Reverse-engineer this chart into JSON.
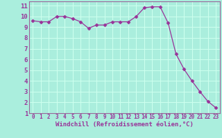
{
  "x": [
    0,
    1,
    2,
    3,
    4,
    5,
    6,
    7,
    8,
    9,
    10,
    11,
    12,
    13,
    14,
    15,
    16,
    17,
    18,
    19,
    20,
    21,
    22,
    23
  ],
  "y": [
    9.6,
    9.5,
    9.5,
    10.0,
    10.0,
    9.8,
    9.5,
    8.9,
    9.2,
    9.2,
    9.5,
    9.5,
    9.5,
    10.0,
    10.8,
    10.9,
    10.9,
    9.4,
    6.5,
    5.1,
    4.0,
    3.0,
    2.1,
    1.5
  ],
  "line_color": "#993399",
  "marker": "D",
  "marker_size": 2.5,
  "bg_color": "#aaeedd",
  "grid_color": "#ccffee",
  "xlabel": "Windchill (Refroidissement éolien,°C)",
  "xlim": [
    -0.5,
    23.5
  ],
  "ylim": [
    1,
    11.4
  ],
  "xticks": [
    0,
    1,
    2,
    3,
    4,
    5,
    6,
    7,
    8,
    9,
    10,
    11,
    12,
    13,
    14,
    15,
    16,
    17,
    18,
    19,
    20,
    21,
    22,
    23
  ],
  "yticks": [
    1,
    2,
    3,
    4,
    5,
    6,
    7,
    8,
    9,
    10,
    11
  ],
  "tick_color": "#993399",
  "label_color": "#993399",
  "spine_color": "#996699",
  "font_family": "monospace",
  "xtick_fontsize": 5.5,
  "ytick_fontsize": 6.5,
  "xlabel_fontsize": 6.5
}
